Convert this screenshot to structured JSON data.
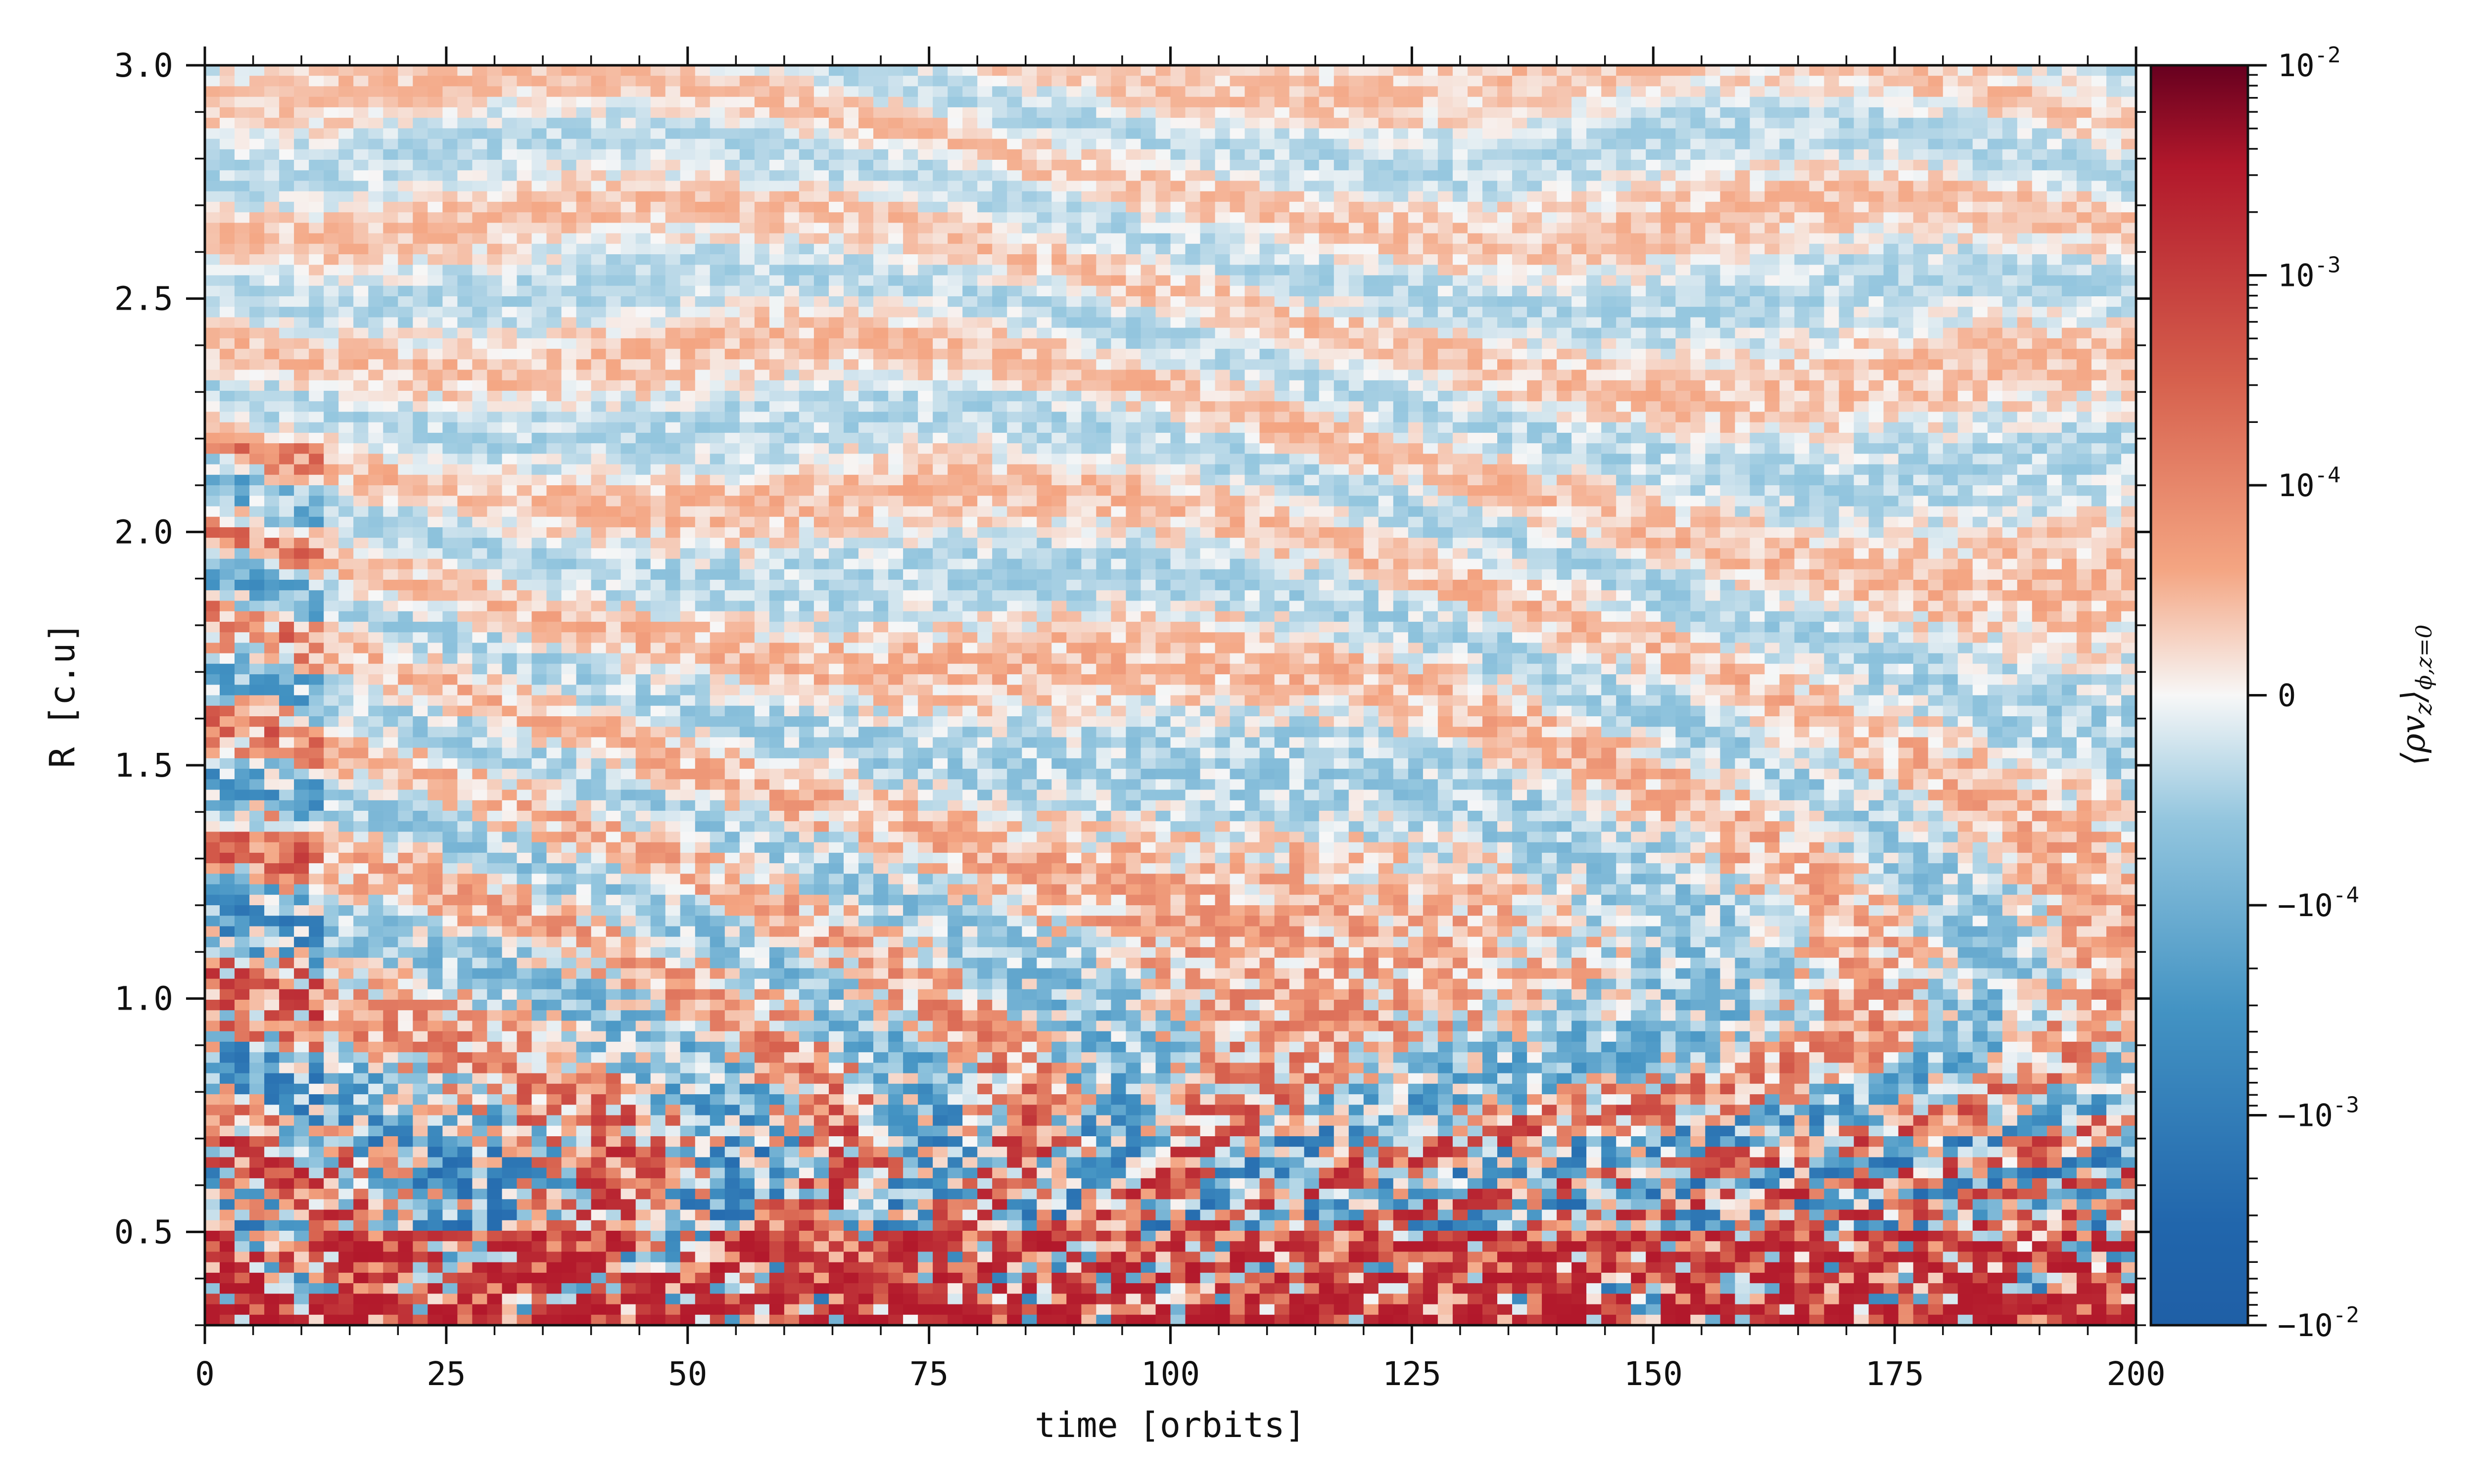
{
  "chart_data": {
    "type": "heatmap",
    "title": "",
    "xlabel": "time [orbits]",
    "ylabel": "R [c.u]",
    "xlim": [
      0,
      200
    ],
    "ylim": [
      0.3,
      3.0
    ],
    "x_ticks": [
      "0",
      "25",
      "50",
      "75",
      "100",
      "125",
      "150",
      "175",
      "200"
    ],
    "x_tick_values": [
      0,
      25,
      50,
      75,
      100,
      125,
      150,
      175,
      200
    ],
    "y_ticks": [
      "0.5",
      "1.0",
      "1.5",
      "2.0",
      "2.5",
      "3.0"
    ],
    "y_tick_values": [
      0.5,
      1.0,
      1.5,
      2.0,
      2.5,
      3.0
    ],
    "colorbar": {
      "label_base": "⟨ρv",
      "label_sub1": "z",
      "label_mid": "⟩",
      "label_sub2": "ϕ,z=0",
      "scale": "symlog",
      "range": [
        -0.01,
        0.01
      ],
      "colormap": "RdBu_r",
      "tick_values": [
        0.01,
        0.001,
        0.0001,
        0,
        -0.0001,
        -0.001,
        -0.01
      ],
      "ticks": [
        {
          "base": "10",
          "exp": "-2"
        },
        {
          "base": "10",
          "exp": "-3"
        },
        {
          "base": "10",
          "exp": "-4"
        },
        {
          "base": "0",
          "exp": ""
        },
        {
          "base": "−10",
          "exp": "-4"
        },
        {
          "base": "−10",
          "exp": "-3"
        },
        {
          "base": "−10",
          "exp": "-2"
        }
      ],
      "colors": [
        "#b2182b",
        "#d6604d",
        "#f4a582",
        "#f7f7f7",
        "#92c5de",
        "#4393c3",
        "#2166ac"
      ]
    }
  }
}
